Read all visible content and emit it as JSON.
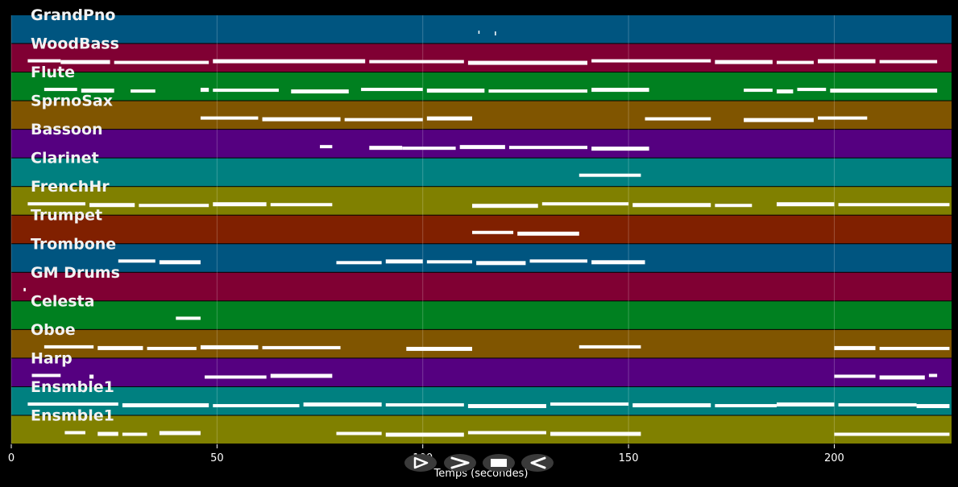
{
  "chart_data": {
    "type": "piano-roll",
    "xlabel": "Temps (secondes)",
    "xlim": [
      0,
      228.5
    ],
    "xticks": [
      0,
      50,
      100,
      150,
      200
    ],
    "grid": true,
    "tracks": [
      {
        "name": "GrandPno",
        "color": "#005580",
        "segments": [
          [
            113.5,
            113.8
          ],
          [
            117.5,
            117.8
          ]
        ]
      },
      {
        "name": "WoodBass",
        "color": "#800033",
        "segments": [
          [
            4,
            12
          ],
          [
            12,
            24
          ],
          [
            25,
            48
          ],
          [
            49,
            86
          ],
          [
            87,
            110
          ],
          [
            111,
            140
          ],
          [
            141,
            170
          ],
          [
            171,
            185
          ],
          [
            186,
            195
          ],
          [
            196,
            210
          ],
          [
            211,
            225
          ]
        ]
      },
      {
        "name": "Flute",
        "color": "#008020",
        "segments": [
          [
            8,
            16
          ],
          [
            17,
            25
          ],
          [
            29,
            35
          ],
          [
            46,
            48
          ],
          [
            49,
            65
          ],
          [
            68,
            82
          ],
          [
            85,
            100
          ],
          [
            101,
            115
          ],
          [
            116,
            140
          ],
          [
            141,
            155
          ],
          [
            178,
            185
          ],
          [
            186,
            190
          ],
          [
            191,
            198
          ],
          [
            199,
            225
          ]
        ]
      },
      {
        "name": "SprnoSax",
        "color": "#805500",
        "segments": [
          [
            46,
            60
          ],
          [
            61,
            80
          ],
          [
            81,
            100
          ],
          [
            101,
            112
          ],
          [
            154,
            170
          ],
          [
            178,
            195
          ],
          [
            196,
            208
          ]
        ]
      },
      {
        "name": "Bassoon",
        "color": "#550080",
        "segments": [
          [
            75,
            78
          ],
          [
            87,
            95
          ],
          [
            95,
            108
          ],
          [
            109,
            120
          ],
          [
            121,
            140
          ],
          [
            141,
            155
          ]
        ]
      },
      {
        "name": "Clarinet",
        "color": "#008080",
        "segments": [
          [
            138,
            153
          ]
        ]
      },
      {
        "name": "FrenchHr",
        "color": "#808000",
        "segments": [
          [
            4,
            18
          ],
          [
            19,
            30
          ],
          [
            31,
            48
          ],
          [
            49,
            62
          ],
          [
            63,
            78
          ],
          [
            112,
            128
          ],
          [
            129,
            150
          ],
          [
            151,
            170
          ],
          [
            171,
            180
          ],
          [
            186,
            200
          ],
          [
            201,
            228
          ]
        ]
      },
      {
        "name": "Trumpet",
        "color": "#802000",
        "segments": [
          [
            112,
            122
          ],
          [
            123,
            138
          ]
        ]
      },
      {
        "name": "Trombone",
        "color": "#005580",
        "segments": [
          [
            26,
            35
          ],
          [
            36,
            46
          ],
          [
            79,
            90
          ],
          [
            91,
            100
          ],
          [
            101,
            112
          ],
          [
            113,
            125
          ],
          [
            126,
            140
          ],
          [
            141,
            154
          ]
        ]
      },
      {
        "name": "GM Drums",
        "color": "#800033",
        "segments": [
          [
            3,
            3.5
          ]
        ]
      },
      {
        "name": "Celesta",
        "color": "#008020",
        "segments": [
          [
            40,
            46
          ]
        ]
      },
      {
        "name": "Oboe",
        "color": "#805500",
        "segments": [
          [
            8,
            20
          ],
          [
            21,
            32
          ],
          [
            33,
            45
          ],
          [
            46,
            60
          ],
          [
            61,
            80
          ],
          [
            96,
            112
          ],
          [
            138,
            153
          ],
          [
            200,
            210
          ],
          [
            211,
            228
          ]
        ]
      },
      {
        "name": "Harp",
        "color": "#550080",
        "segments": [
          [
            5,
            12
          ],
          [
            19,
            20
          ],
          [
            47,
            62
          ],
          [
            63,
            78
          ],
          [
            200,
            210
          ],
          [
            211,
            222
          ],
          [
            223,
            225
          ]
        ]
      },
      {
        "name": "Ensmble1",
        "color": "#008080",
        "segments": [
          [
            4,
            26
          ],
          [
            27,
            48
          ],
          [
            49,
            70
          ],
          [
            71,
            90
          ],
          [
            91,
            110
          ],
          [
            111,
            130
          ],
          [
            131,
            150
          ],
          [
            151,
            170
          ],
          [
            171,
            186
          ],
          [
            186,
            200
          ],
          [
            201,
            220
          ],
          [
            220,
            228
          ]
        ]
      },
      {
        "name": "Ensmble1",
        "color": "#808000",
        "segments": [
          [
            13,
            18
          ],
          [
            21,
            26
          ],
          [
            27,
            33
          ],
          [
            36,
            46
          ],
          [
            79,
            90
          ],
          [
            91,
            110
          ],
          [
            111,
            130
          ],
          [
            131,
            153
          ],
          [
            200,
            228
          ]
        ]
      }
    ]
  },
  "controls": [
    {
      "name": "play-button",
      "icon": "play-outline-icon"
    },
    {
      "name": "forward-button",
      "icon": "chevron-right-icon"
    },
    {
      "name": "stop-button",
      "icon": "stop-icon"
    },
    {
      "name": "rewind-button",
      "icon": "rewind-icon"
    }
  ]
}
